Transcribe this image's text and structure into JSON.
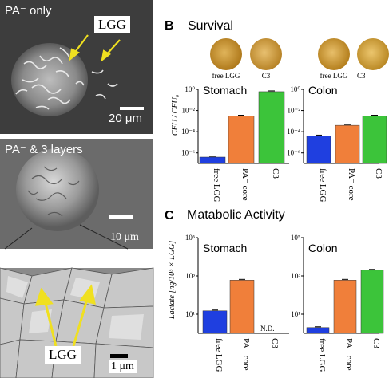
{
  "left_panels": {
    "top": {
      "label": "PA⁻ only",
      "lgg_label": "LGG",
      "scale": "20 μm"
    },
    "middle": {
      "label": "PA⁻ & 3 layers",
      "scale": "10 μm"
    },
    "bottom": {
      "lgg_label": "LGG",
      "scale": "1 μm"
    }
  },
  "panel_b": {
    "letter": "B",
    "title": "Survival",
    "dish_labels": [
      "free LGG",
      "C3",
      "free LGG",
      "C3"
    ],
    "ylabel": "CFU / CFU₀"
  },
  "panel_c": {
    "letter": "C",
    "title": "Matabolic Activity",
    "ylabel": "Lactate [ng/10⁵ × LGG]",
    "nd_label": "N.D."
  },
  "chart_data": [
    {
      "type": "bar",
      "title": "Stomach",
      "ylabel": "CFU / CFU₀",
      "yscale": "log",
      "ylim": [
        1e-07,
        1
      ],
      "yticks": [
        "10⁰",
        "10⁻²",
        "10⁻⁴",
        "10⁻⁶"
      ],
      "categories": [
        "free LGG",
        "PA⁻ core",
        "C3"
      ],
      "values": [
        4e-07,
        0.003,
        0.6
      ],
      "colors": [
        "#1f3fe0",
        "#f07f3a",
        "#3cc43a"
      ]
    },
    {
      "type": "bar",
      "title": "Colon",
      "yscale": "log",
      "ylim": [
        1e-07,
        1
      ],
      "yticks": [
        "10⁰",
        "10⁻²",
        "10⁻⁴",
        "10⁻⁶"
      ],
      "categories": [
        "free LGG",
        "PA⁻ core",
        "C3"
      ],
      "values": [
        4e-05,
        0.0004,
        0.003
      ],
      "colors": [
        "#1f3fe0",
        "#f07f3a",
        "#3cc43a"
      ]
    },
    {
      "type": "bar",
      "title": "Stomach",
      "ylabel": "Lactate [ng/10⁵ × LGG]",
      "yscale": "log",
      "ylim": [
        1,
        100000
      ],
      "yticks": [
        "10⁵",
        "10³",
        "10¹"
      ],
      "categories": [
        "free LGG",
        "PA⁻ core",
        "C3"
      ],
      "values": [
        15,
        600,
        null
      ],
      "annotations": [
        "N.D."
      ],
      "colors": [
        "#1f3fe0",
        "#f07f3a",
        "#3cc43a"
      ]
    },
    {
      "type": "bar",
      "title": "Colon",
      "yscale": "log",
      "ylim": [
        1,
        100000
      ],
      "yticks": [
        "10⁵",
        "10³",
        "10¹"
      ],
      "categories": [
        "free LGG",
        "PA⁻ core",
        "C3"
      ],
      "values": [
        2,
        600,
        2000
      ],
      "colors": [
        "#1f3fe0",
        "#f07f3a",
        "#3cc43a"
      ]
    }
  ]
}
